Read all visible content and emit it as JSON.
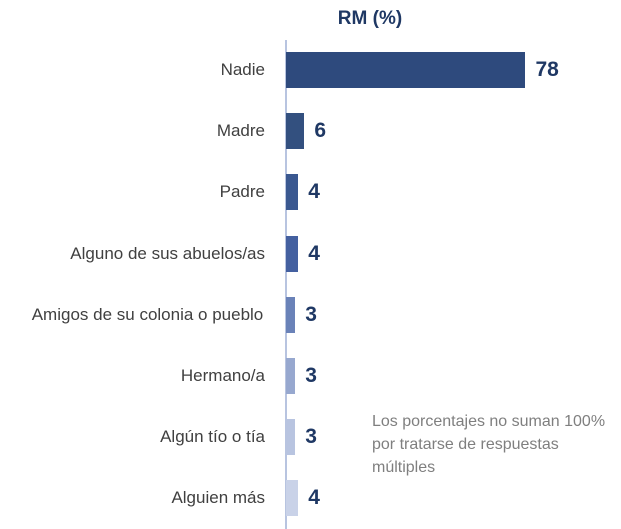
{
  "chart_data": {
    "type": "bar",
    "orientation": "horizontal",
    "title": "RM (%)",
    "categories": [
      "Nadie",
      "Madre",
      "Padre",
      "Alguno de sus abuelos/as",
      "Amigos de su colonia o pueblo",
      "Hermano/a",
      "Algún tío o tía",
      "Alguien más"
    ],
    "values": [
      78,
      6,
      4,
      4,
      3,
      3,
      3,
      4
    ],
    "colors": [
      "#2e4a7d",
      "#33507f",
      "#3a5890",
      "#4460a0",
      "#6a82b8",
      "#97a8cf",
      "#b8c4e0",
      "#c9d2e8"
    ],
    "annotation": "Los porcentajes no suman 100% por tratarse de respuestas múltiples"
  }
}
